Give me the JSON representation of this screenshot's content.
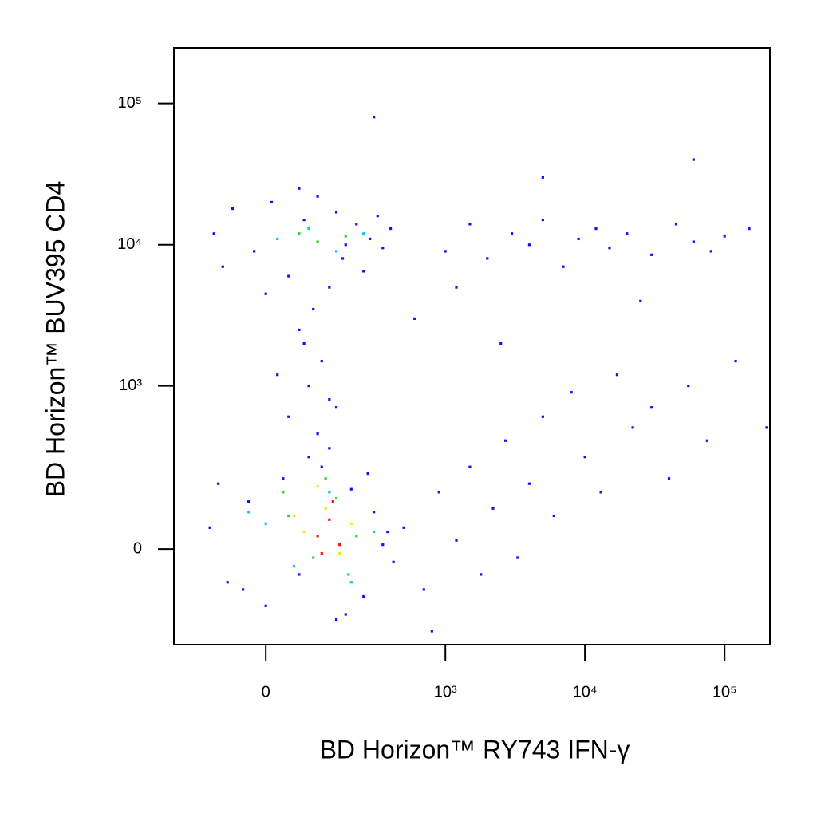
{
  "chart_data": {
    "type": "scatter",
    "x_label": "BD Horizon™ RY743 IFN-γ",
    "y_label": "BD Horizon™ BUV395 CD4",
    "xscale": "biexponential",
    "yscale": "biexponential",
    "xlim": [
      -225,
      211000
    ],
    "ylim": [
      -320,
      247000
    ],
    "xticks": [
      0,
      {
        "value": 1000,
        "label": "10³"
      },
      {
        "value": 10000,
        "label": "10⁴"
      },
      {
        "value": 100000,
        "label": "10⁵"
      }
    ],
    "yticks": [
      0,
      {
        "value": 1000,
        "label": "10³"
      },
      {
        "value": 10000,
        "label": "10⁴"
      },
      {
        "value": 100000,
        "label": "10⁵"
      }
    ],
    "series": [
      {
        "color": "#1010ff",
        "x": [
          -100,
          -60,
          -20,
          10,
          40,
          70,
          100,
          130,
          170,
          220,
          280,
          350,
          400,
          -80,
          0,
          60,
          150,
          250,
          320,
          180,
          -110,
          -70,
          -30,
          0,
          30,
          60,
          110,
          150,
          200,
          250,
          300,
          380,
          420,
          -90,
          -40,
          80,
          180,
          270,
          350,
          130,
          40,
          80,
          110,
          60,
          130,
          90,
          20,
          150,
          70,
          100,
          1000,
          1500,
          2000,
          3000,
          4000,
          5000,
          7000,
          9000,
          12000,
          15000,
          20000,
          30000,
          45000,
          60000,
          80000,
          100000,
          150000,
          25000,
          500,
          700,
          900,
          1200,
          1500,
          1800,
          2200,
          2700,
          3300,
          4000,
          5000,
          6000,
          8000,
          10000,
          13000,
          17000,
          22000,
          30000,
          40000,
          55000,
          75000,
          120000,
          600,
          1200,
          2500,
          5000,
          300,
          800,
          60000,
          200000
        ],
        "values": [
          12000,
          18000,
          9000,
          20000,
          6000,
          15000,
          22000,
          5000,
          8000,
          14000,
          11000,
          9500,
          13000,
          7000,
          4500,
          25000,
          17000,
          6500,
          16000,
          10000,
          50,
          -80,
          120,
          -150,
          200,
          -60,
          250,
          -200,
          160,
          -120,
          90,
          40,
          -30,
          180,
          -100,
          300,
          -180,
          220,
          10,
          350,
          600,
          1000,
          1500,
          2500,
          800,
          3500,
          1200,
          700,
          2000,
          450,
          9000,
          14000,
          8000,
          12000,
          10000,
          15000,
          7000,
          11000,
          13000,
          9500,
          12000,
          8500,
          14000,
          10500,
          9000,
          11500,
          13000,
          4000,
          50,
          -100,
          150,
          20,
          250,
          -60,
          100,
          400,
          -20,
          180,
          600,
          80,
          900,
          300,
          150,
          1200,
          500,
          700,
          200,
          1000,
          400,
          1500,
          3000,
          5000,
          2000,
          30000,
          80000,
          -250,
          40000,
          500
        ]
      },
      {
        "color": "#00c8ff",
        "x": [
          20,
          80,
          150,
          250,
          0,
          50,
          130,
          200,
          300,
          -30
        ],
        "values": [
          11000,
          13000,
          9000,
          12000,
          60,
          -40,
          150,
          -80,
          40,
          90
        ]
      },
      {
        "color": "#30d030",
        "x": [
          60,
          100,
          180,
          40,
          90,
          150,
          220,
          120,
          30,
          190
        ],
        "values": [
          12000,
          10500,
          11500,
          80,
          -20,
          130,
          30,
          200,
          150,
          -60
        ]
      },
      {
        "color": "#f0f000",
        "x": [
          70,
          120,
          160,
          100,
          50,
          200
        ],
        "values": [
          40,
          100,
          -10,
          170,
          80,
          60
        ]
      },
      {
        "color": "#ff1010",
        "x": [
          100,
          130,
          160,
          110,
          140
        ],
        "values": [
          30,
          70,
          10,
          -10,
          120
        ]
      }
    ]
  }
}
